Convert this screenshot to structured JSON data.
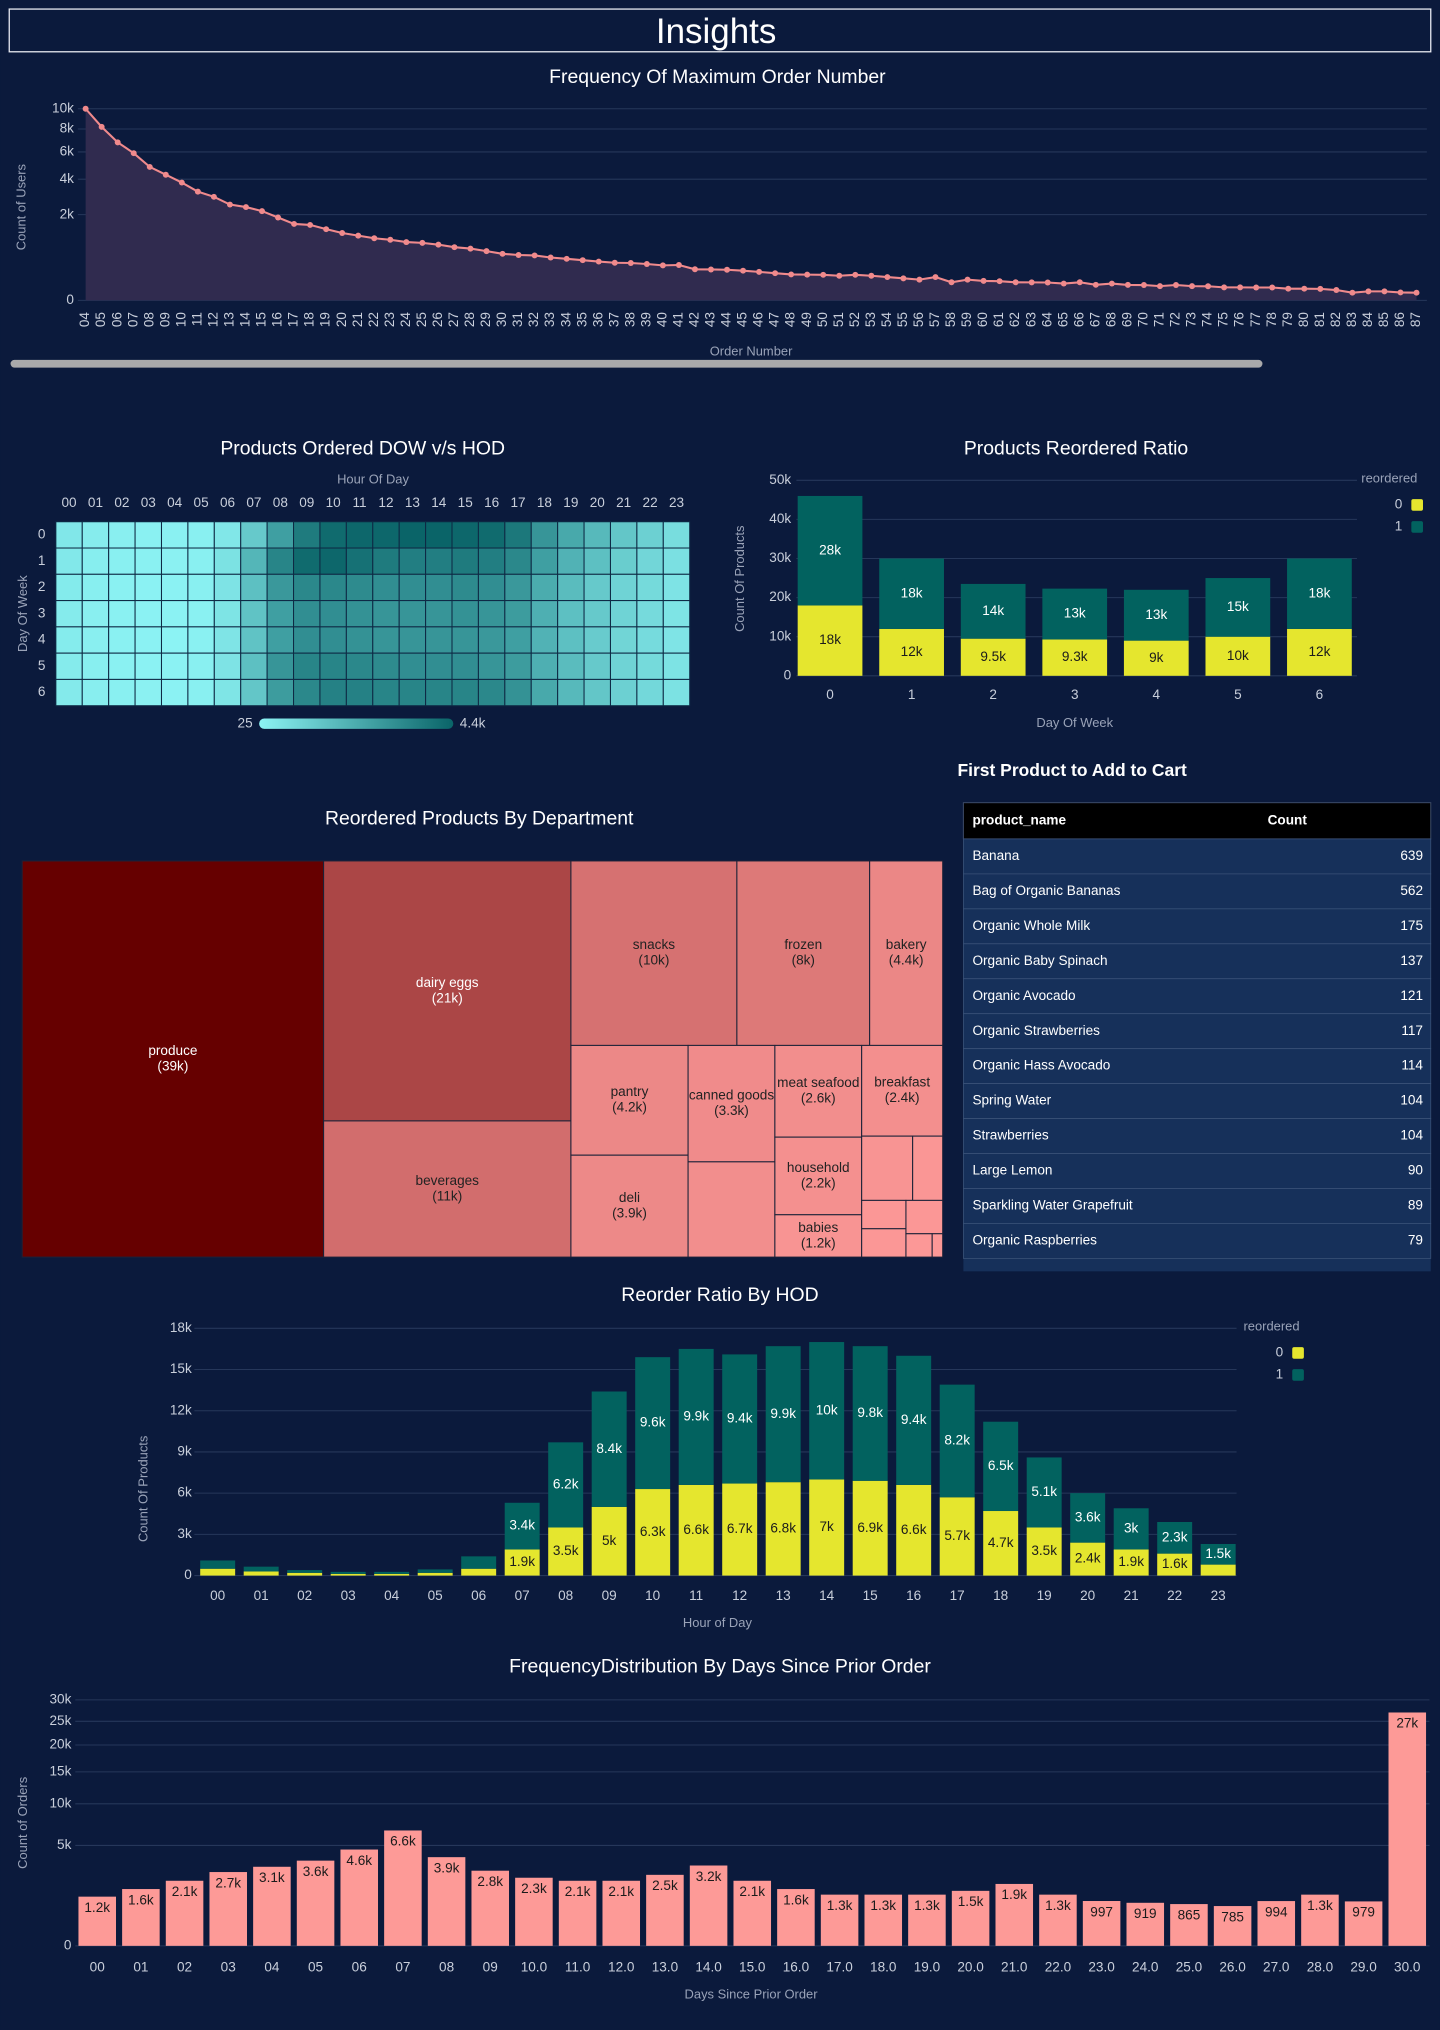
{
  "title": "Insights",
  "chart_data": [
    {
      "type": "area",
      "title": "Frequency Of Maximum Order Number",
      "x_label": "Order Number",
      "y_label": "Count of Users",
      "color": "#f08a8c",
      "area_color": "#302b4f",
      "grid": true,
      "yscale": "sqrt",
      "categories": [
        "04",
        "05",
        "06",
        "07",
        "08",
        "09",
        "10",
        "11",
        "12",
        "13",
        "14",
        "15",
        "16",
        "17",
        "18",
        "19",
        "20",
        "21",
        "22",
        "23",
        "24",
        "25",
        "26",
        "27",
        "28",
        "29",
        "30",
        "31",
        "32",
        "33",
        "34",
        "35",
        "36",
        "37",
        "38",
        "39",
        "40",
        "41",
        "42",
        "43",
        "44",
        "45",
        "46",
        "47",
        "48",
        "49",
        "50",
        "51",
        "52",
        "53",
        "54",
        "55",
        "56",
        "57",
        "58",
        "59",
        "60",
        "61",
        "62",
        "63",
        "64",
        "65",
        "66",
        "67",
        "68",
        "69",
        "70",
        "71",
        "72",
        "73",
        "74",
        "75",
        "76",
        "77",
        "78",
        "79",
        "80",
        "81",
        "82",
        "83",
        "84",
        "85",
        "86",
        "87"
      ],
      "values": [
        10000,
        8200,
        6800,
        5900,
        4850,
        4300,
        3780,
        3220,
        2920,
        2500,
        2370,
        2170,
        1870,
        1590,
        1550,
        1380,
        1235,
        1140,
        1050,
        1000,
        925,
        900,
        845,
        770,
        730,
        660,
        590,
        560,
        550,
        500,
        470,
        440,
        410,
        385,
        380,
        360,
        333,
        340,
        263,
        260,
        255,
        240,
        221,
        201,
        183,
        180,
        178,
        165,
        178,
        165,
        148,
        132,
        117,
        148,
        89,
        117,
        103,
        100,
        89,
        88,
        87,
        77,
        89,
        66,
        77,
        65,
        64,
        55,
        64,
        55,
        54,
        46,
        46,
        45,
        45,
        37,
        37,
        36,
        29,
        16,
        22,
        22,
        17,
        16
      ],
      "ylim": [
        0,
        10000
      ],
      "yticks": [
        0,
        {
          "value": 2000,
          "label": "2k"
        },
        {
          "value": 4000,
          "label": "4k"
        },
        {
          "value": 6000,
          "label": "6k"
        },
        {
          "value": 8000,
          "label": "8k"
        },
        {
          "value": 10000,
          "label": "10k"
        }
      ]
    },
    {
      "type": "heatmap",
      "title": "Products Ordered DOW v/s HOD",
      "x_label": "Hour Of Day",
      "y_label": "Day Of Week",
      "color_range": [
        "#8cf3f4",
        "#0a6468"
      ],
      "x": [
        "00",
        "01",
        "02",
        "03",
        "04",
        "05",
        "06",
        "07",
        "08",
        "09",
        "10",
        "11",
        "12",
        "13",
        "14",
        "15",
        "16",
        "17",
        "18",
        "19",
        "20",
        "21",
        "22",
        "23"
      ],
      "y": [
        "0",
        "1",
        "2",
        "3",
        "4",
        "5",
        "6"
      ],
      "values": [
        [
          380,
          230,
          140,
          100,
          80,
          120,
          400,
          1300,
          2600,
          3700,
          4200,
          4300,
          4300,
          4400,
          4400,
          4300,
          4200,
          3800,
          2900,
          2300,
          1800,
          1400,
          1100,
          700
        ],
        [
          350,
          190,
          120,
          80,
          75,
          130,
          560,
          1900,
          3400,
          4200,
          4300,
          4000,
          3700,
          3600,
          3600,
          3700,
          3600,
          3300,
          2600,
          2000,
          1600,
          1200,
          900,
          600
        ],
        [
          280,
          150,
          90,
          70,
          60,
          110,
          500,
          1600,
          2800,
          3300,
          3300,
          3200,
          3100,
          3100,
          3100,
          3200,
          3100,
          2800,
          2200,
          1700,
          1300,
          1000,
          800,
          500
        ],
        [
          260,
          140,
          90,
          60,
          55,
          100,
          480,
          1500,
          2600,
          3100,
          3100,
          3000,
          2900,
          2900,
          2900,
          3000,
          2900,
          2700,
          2100,
          1600,
          1300,
          1000,
          780,
          480
        ],
        [
          250,
          140,
          85,
          60,
          25,
          100,
          470,
          1500,
          2600,
          3100,
          3100,
          3000,
          2900,
          2900,
          2900,
          2900,
          2800,
          2600,
          2000,
          1600,
          1250,
          950,
          750,
          470
        ],
        [
          270,
          150,
          95,
          65,
          60,
          110,
          500,
          1600,
          2900,
          3400,
          3400,
          3300,
          3200,
          3100,
          3100,
          3100,
          2900,
          2700,
          2100,
          1700,
          1300,
          1000,
          800,
          520
        ],
        [
          300,
          170,
          110,
          75,
          65,
          110,
          450,
          1400,
          2700,
          3300,
          3500,
          3500,
          3400,
          3400,
          3400,
          3400,
          3300,
          3000,
          2300,
          1800,
          1400,
          1100,
          850,
          560
        ]
      ],
      "clim": [
        25,
        4400
      ],
      "cticks": [
        25,
        {
          "value": 4400,
          "label": "4.4k"
        }
      ]
    },
    {
      "type": "stacked_bar",
      "title": "Products Reordered Ratio",
      "x_label": "Day Of Week",
      "y_label": "Count Of Products",
      "legend_title": "reordered",
      "grid": true,
      "categories": [
        "0",
        "1",
        "2",
        "3",
        "4",
        "5",
        "6"
      ],
      "series": [
        {
          "name": "0",
          "color": "#e5e62e",
          "values": [
            18000,
            12000,
            9500,
            9300,
            9000,
            10000,
            12000
          ],
          "value_labels": [
            "18k",
            "12k",
            "9.5k",
            "9.3k",
            "9k",
            "10k",
            "12k"
          ]
        },
        {
          "name": "1",
          "color": "#02625f",
          "values": [
            28000,
            18000,
            14000,
            13000,
            13000,
            15000,
            18000
          ],
          "value_labels": [
            "28k",
            "18k",
            "14k",
            "13k",
            "13k",
            "15k",
            "18k"
          ]
        }
      ],
      "ylim": [
        0,
        50000
      ],
      "yticks": [
        0,
        {
          "value": 10000,
          "label": "10k"
        },
        {
          "value": 20000,
          "label": "20k"
        },
        {
          "value": 30000,
          "label": "30k"
        },
        {
          "value": 40000,
          "label": "40k"
        },
        {
          "value": 50000,
          "label": "50k"
        }
      ]
    },
    {
      "type": "treemap",
      "title": "Reordered Products By Department",
      "color_range": [
        "#fc9897",
        "#660000"
      ],
      "categories": [
        "produce",
        "dairy eggs",
        "beverages",
        "snacks",
        "frozen",
        "bakery",
        "pantry",
        "deli",
        "canned goods",
        "meat seafood",
        "breakfast",
        "household",
        "babies",
        null,
        null,
        null,
        null,
        null,
        null,
        null,
        null
      ],
      "values": [
        39000,
        21000,
        11000,
        10000,
        8000,
        4400,
        4200,
        3900,
        3300,
        2600,
        2400,
        2200,
        1200,
        2700,
        1070,
        630,
        410,
        410,
        400,
        200,
        80
      ],
      "value_labels": [
        "(39k)",
        "(21k)",
        "(11k)",
        "(10k)",
        "(8k)",
        "(4.4k)",
        "(4.2k)",
        "(3.9k)",
        "(3.3k)",
        "(2.6k)",
        "(2.4k)",
        "(2.2k)",
        "(1.2k)",
        null,
        null,
        null,
        null,
        null,
        null,
        null,
        null
      ]
    },
    {
      "type": "stacked_bar",
      "title": "Reorder Ratio By HOD",
      "x_label": "Hour of Day",
      "y_label": "Count Of Products",
      "legend_title": "reordered",
      "grid": true,
      "categories": [
        "00",
        "01",
        "02",
        "03",
        "04",
        "05",
        "06",
        "07",
        "08",
        "09",
        "10",
        "11",
        "12",
        "13",
        "14",
        "15",
        "16",
        "17",
        "18",
        "19",
        "20",
        "21",
        "22",
        "23"
      ],
      "series": [
        {
          "name": "0",
          "color": "#e5e62e",
          "values": [
            500,
            300,
            200,
            120,
            120,
            200,
            500,
            1900,
            3500,
            5000,
            6300,
            6600,
            6700,
            6800,
            7000,
            6900,
            6600,
            5700,
            4700,
            3500,
            2400,
            1900,
            1600,
            800
          ],
          "value_labels": [
            null,
            null,
            null,
            null,
            null,
            null,
            null,
            "1.9k",
            "3.5k",
            "5k",
            "6.3k",
            "6.6k",
            "6.7k",
            "6.8k",
            "7k",
            "6.9k",
            "6.6k",
            "5.7k",
            "4.7k",
            "3.5k",
            "2.4k",
            "1.9k",
            "1.6k",
            null
          ]
        },
        {
          "name": "1",
          "color": "#02625f",
          "values": [
            600,
            350,
            200,
            150,
            150,
            250,
            900,
            3400,
            6200,
            8400,
            9600,
            9900,
            9400,
            9900,
            10000,
            9800,
            9400,
            8200,
            6500,
            5100,
            3600,
            3000,
            2300,
            1500
          ],
          "value_labels": [
            null,
            null,
            null,
            null,
            null,
            null,
            null,
            "3.4k",
            "6.2k",
            "8.4k",
            "9.6k",
            "9.9k",
            "9.4k",
            "9.9k",
            "10k",
            "9.8k",
            "9.4k",
            "8.2k",
            "6.5k",
            "5.1k",
            "3.6k",
            "3k",
            "2.3k",
            "1.5k"
          ]
        }
      ],
      "ylim": [
        0,
        18000
      ],
      "yticks": [
        0,
        {
          "value": 3000,
          "label": "3k"
        },
        {
          "value": 6000,
          "label": "6k"
        },
        {
          "value": 9000,
          "label": "9k"
        },
        {
          "value": 12000,
          "label": "12k"
        },
        {
          "value": 15000,
          "label": "15k"
        },
        {
          "value": 18000,
          "label": "18k"
        }
      ]
    },
    {
      "type": "bar",
      "title": "FrequencyDistribution By Days Since Prior Order",
      "x_label": "Days Since Prior Order",
      "y_label": "Count of Orders",
      "color": "#fd9a97",
      "grid": true,
      "yscale": "sqrt",
      "categories": [
        "00",
        "01",
        "02",
        "03",
        "04",
        "05",
        "06",
        "07",
        "08",
        "09",
        "10.0",
        "11.0",
        "12.0",
        "13.0",
        "14.0",
        "15.0",
        "16.0",
        "17.0",
        "18.0",
        "19.0",
        "20.0",
        "21.0",
        "22.0",
        "23.0",
        "24.0",
        "25.0",
        "26.0",
        "27.0",
        "28.0",
        "29.0",
        "30.0"
      ],
      "values": [
        1200,
        1600,
        2100,
        2700,
        3100,
        3600,
        4600,
        6600,
        3900,
        2800,
        2300,
        2100,
        2100,
        2500,
        3200,
        2100,
        1600,
        1300,
        1300,
        1300,
        1500,
        1900,
        1300,
        997,
        919,
        865,
        785,
        994,
        1300,
        979,
        27000
      ],
      "value_labels": [
        "1.2k",
        "1.6k",
        "2.1k",
        "2.7k",
        "3.1k",
        "3.6k",
        "4.6k",
        "6.6k",
        "3.9k",
        "2.8k",
        "2.3k",
        "2.1k",
        "2.1k",
        "2.5k",
        "3.2k",
        "2.1k",
        "1.6k",
        "1.3k",
        "1.3k",
        "1.3k",
        "1.5k",
        "1.9k",
        "1.3k",
        "997",
        "919",
        "865",
        "785",
        "994",
        "1.3k",
        "979",
        "27k"
      ],
      "ylim": [
        0,
        30000
      ],
      "yticks": [
        0,
        {
          "value": 5000,
          "label": "5k"
        },
        {
          "value": 10000,
          "label": "10k"
        },
        {
          "value": 15000,
          "label": "15k"
        },
        {
          "value": 20000,
          "label": "20k"
        },
        {
          "value": 25000,
          "label": "25k"
        },
        {
          "value": 30000,
          "label": "30k"
        }
      ]
    }
  ],
  "table": {
    "title": "First Product to Add to Cart",
    "columns": [
      "product_name",
      "Count"
    ],
    "rows": [
      [
        "Banana",
        639
      ],
      [
        "Bag of Organic Bananas",
        562
      ],
      [
        "Organic Whole Milk",
        175
      ],
      [
        "Organic Baby Spinach",
        137
      ],
      [
        "Organic Avocado",
        121
      ],
      [
        "Organic Strawberries",
        117
      ],
      [
        "Organic Hass Avocado",
        114
      ],
      [
        "Spring Water",
        104
      ],
      [
        "Strawberries",
        104
      ],
      [
        "Large Lemon",
        90
      ],
      [
        "Sparkling Water Grapefruit",
        89
      ],
      [
        "Organic Raspberries",
        79
      ]
    ]
  }
}
